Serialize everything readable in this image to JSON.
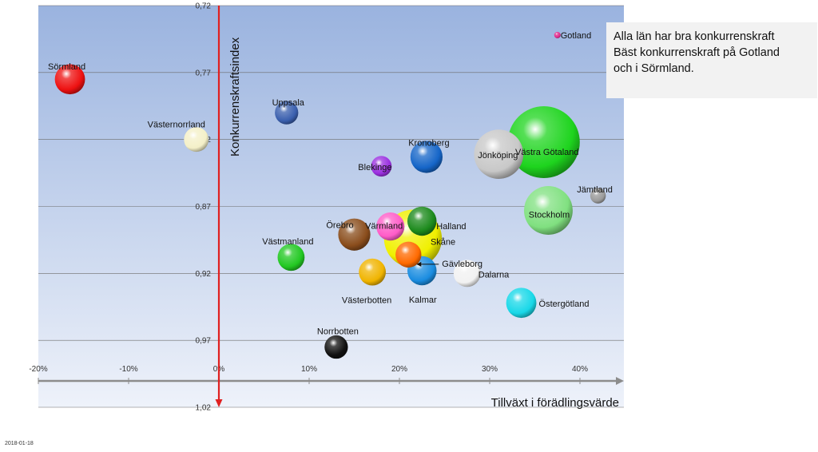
{
  "chart_data": {
    "type": "bubble",
    "title": "",
    "xlabel": "Tillväxt i förädlingsvärde",
    "ylabel": "Konkurrenskraftsindex",
    "xlim": [
      -0.2,
      0.45
    ],
    "ylim": [
      0.72,
      1.02
    ],
    "y_inverted": true,
    "x_ticks": [
      "-20%",
      "-10%",
      "0%",
      "10%",
      "20%",
      "30%",
      "40%"
    ],
    "y_ticks": [
      "0,72",
      "0,77",
      "0,82",
      "0,87",
      "0,92",
      "0,97",
      "1,02"
    ],
    "grid": "horizontal",
    "points": [
      {
        "name": "Gotland",
        "x": 0.375,
        "y": 0.742,
        "size": 1,
        "color": "#e0288c"
      },
      {
        "name": "Sörmland",
        "x": -0.165,
        "y": 0.775,
        "size": 30,
        "color": "#ee1111"
      },
      {
        "name": "Uppsala",
        "x": 0.075,
        "y": 0.8,
        "size": 18,
        "color": "#3a5fae"
      },
      {
        "name": "Västernorrland",
        "x": -0.025,
        "y": 0.82,
        "size": 20,
        "color": "#f4f0c8"
      },
      {
        "name": "Kronoberg",
        "x": 0.23,
        "y": 0.833,
        "size": 34,
        "color": "#1565c8"
      },
      {
        "name": "Jönköping",
        "x": 0.31,
        "y": 0.831,
        "size": 80,
        "color": "#c8c8c8"
      },
      {
        "name": "Västra Götaland",
        "x": 0.36,
        "y": 0.822,
        "size": 170,
        "color": "#1ed41e"
      },
      {
        "name": "Blekinge",
        "x": 0.18,
        "y": 0.84,
        "size": 14,
        "color": "#9b30e0"
      },
      {
        "name": "Jämtland",
        "x": 0.42,
        "y": 0.862,
        "size": 8,
        "color": "#9a9a9a"
      },
      {
        "name": "Stockholm",
        "x": 0.365,
        "y": 0.873,
        "size": 78,
        "color": "#80e080"
      },
      {
        "name": "Halland",
        "x": 0.225,
        "y": 0.881,
        "size": 28,
        "color": "#1c8a1c"
      },
      {
        "name": "Värmland",
        "x": 0.19,
        "y": 0.885,
        "size": 26,
        "color": "#ff5cc8"
      },
      {
        "name": "Örebro",
        "x": 0.15,
        "y": 0.891,
        "size": 34,
        "color": "#8a4d1c"
      },
      {
        "name": "Skåne",
        "x": 0.215,
        "y": 0.894,
        "size": 110,
        "color": "#f0f000"
      },
      {
        "name": "Västmanland",
        "x": 0.08,
        "y": 0.908,
        "size": 24,
        "color": "#22c822"
      },
      {
        "name": "Gävleborg",
        "x": 0.21,
        "y": 0.906,
        "size": 22,
        "color": "#ff6a00"
      },
      {
        "name": "Västerbotten",
        "x": 0.17,
        "y": 0.919,
        "size": 24,
        "color": "#f0b400"
      },
      {
        "name": "Kalmar",
        "x": 0.225,
        "y": 0.918,
        "size": 28,
        "color": "#1a8ce0"
      },
      {
        "name": "Dalarna",
        "x": 0.275,
        "y": 0.92,
        "size": 24,
        "color": "#f2f2f2"
      },
      {
        "name": "Östergötland",
        "x": 0.335,
        "y": 0.942,
        "size": 30,
        "color": "#18d8e8"
      },
      {
        "name": "Norrbotten",
        "x": 0.13,
        "y": 0.975,
        "size": 18,
        "color": "#111111"
      }
    ]
  },
  "note": {
    "lines": [
      "Alla län har bra konkurrenskraft",
      "Bäst konkurrenskraft  på Gotland",
      "och i Sörmland."
    ]
  },
  "footer": {
    "date": "2018-01-18"
  }
}
